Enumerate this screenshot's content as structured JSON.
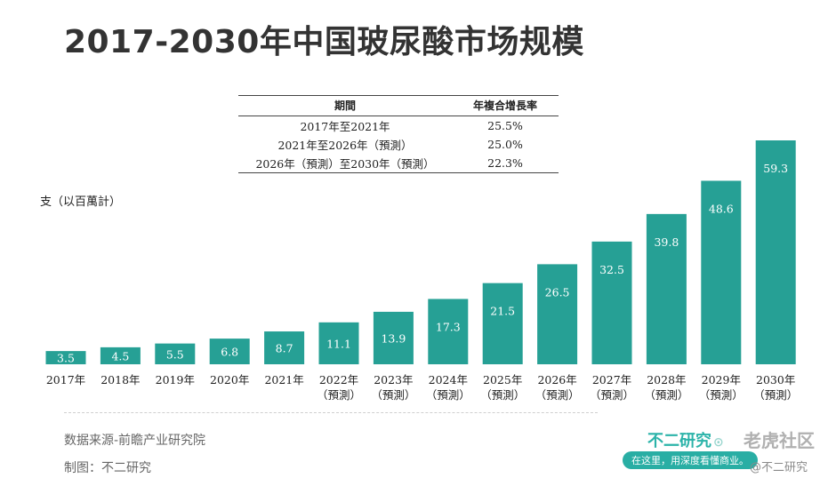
{
  "page": {
    "title": "2017-2030年中国玻尿酸市场规模",
    "unit": "支（以百萬計）",
    "source": "数据来源-前瞻产业研究院",
    "maker": "制图：不二研究",
    "brand": "不二研究",
    "slogan": "在这里，用深度看懂商业。",
    "watermark": "老虎社区",
    "credit": "@不二研究"
  },
  "cagr_table": {
    "headers": [
      "期間",
      "年複合增長率"
    ],
    "rows": [
      {
        "period": "2017年至2021年",
        "rate": "25.5%"
      },
      {
        "period": "2021年至2026年（預測）",
        "rate": "25.0%"
      },
      {
        "period": "2026年（預測）至2030年（預測）",
        "rate": "22.3%"
      }
    ]
  },
  "chart_data": {
    "type": "bar",
    "title": "2017-2030年中国玻尿酸市场规模",
    "ylabel": "支（以百萬計）",
    "xlabel": "",
    "categories": [
      "2017年",
      "2018年",
      "2019年",
      "2020年",
      "2021年",
      "2022年",
      "2023年",
      "2024年",
      "2025年",
      "2026年",
      "2027年",
      "2028年",
      "2029年",
      "2030年"
    ],
    "category_notes": [
      "",
      "",
      "",
      "",
      "",
      "（預測）",
      "（預測）",
      "（預測）",
      "（預測）",
      "（預測）",
      "（預測）",
      "（預測）",
      "（預測）",
      "（預測）"
    ],
    "values": [
      3.5,
      4.5,
      5.5,
      6.8,
      8.7,
      11.1,
      13.9,
      17.3,
      21.5,
      26.5,
      32.5,
      39.8,
      48.6,
      59.3
    ],
    "value_labels": [
      "3.5",
      "4.5",
      "5.5",
      "6.8",
      "8.7",
      "11.1",
      "13.9",
      "17.3",
      "21.5",
      "26.5",
      "32.5",
      "39.8",
      "48.6",
      "59.3"
    ],
    "ylim": [
      0,
      59.3
    ],
    "grid": false,
    "legend": "none",
    "color": "#26a095"
  }
}
